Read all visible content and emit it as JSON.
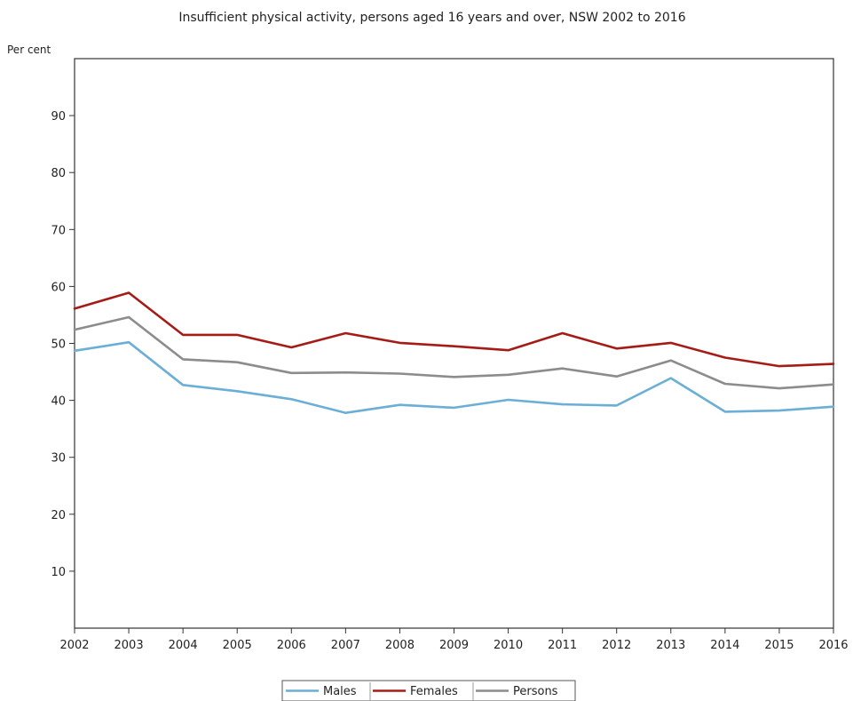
{
  "chart_data": {
    "type": "line",
    "title": "Insufficient physical activity, persons aged 16 years and over, NSW  2002 to 2016",
    "ylabel": "Per cent",
    "xlabel": "",
    "ylim": [
      0,
      100
    ],
    "yticks": [
      10,
      20,
      30,
      40,
      50,
      60,
      70,
      80,
      90
    ],
    "grid": false,
    "legend_position": "bottom-center",
    "categories": [
      "2002",
      "2003",
      "2004",
      "2005",
      "2006",
      "2007",
      "2008",
      "2009",
      "2010",
      "2011",
      "2012",
      "2013",
      "2014",
      "2015",
      "2016"
    ],
    "series": [
      {
        "name": "Males",
        "color": "#6baed6",
        "values": [
          48.7,
          50.2,
          42.7,
          41.6,
          40.2,
          37.8,
          39.2,
          38.7,
          40.1,
          39.3,
          39.1,
          43.9,
          38.0,
          38.2,
          38.9
        ]
      },
      {
        "name": "Females",
        "color": "#a51c17",
        "values": [
          56.1,
          58.9,
          51.5,
          51.5,
          49.3,
          51.8,
          50.1,
          49.5,
          48.8,
          51.8,
          49.1,
          50.1,
          47.5,
          46.0,
          46.4
        ]
      },
      {
        "name": "Persons",
        "color": "#8c8c8c",
        "values": [
          52.4,
          54.6,
          47.2,
          46.7,
          44.8,
          44.9,
          44.7,
          44.1,
          44.5,
          45.6,
          44.2,
          47.0,
          42.9,
          42.1,
          42.8
        ]
      }
    ]
  }
}
